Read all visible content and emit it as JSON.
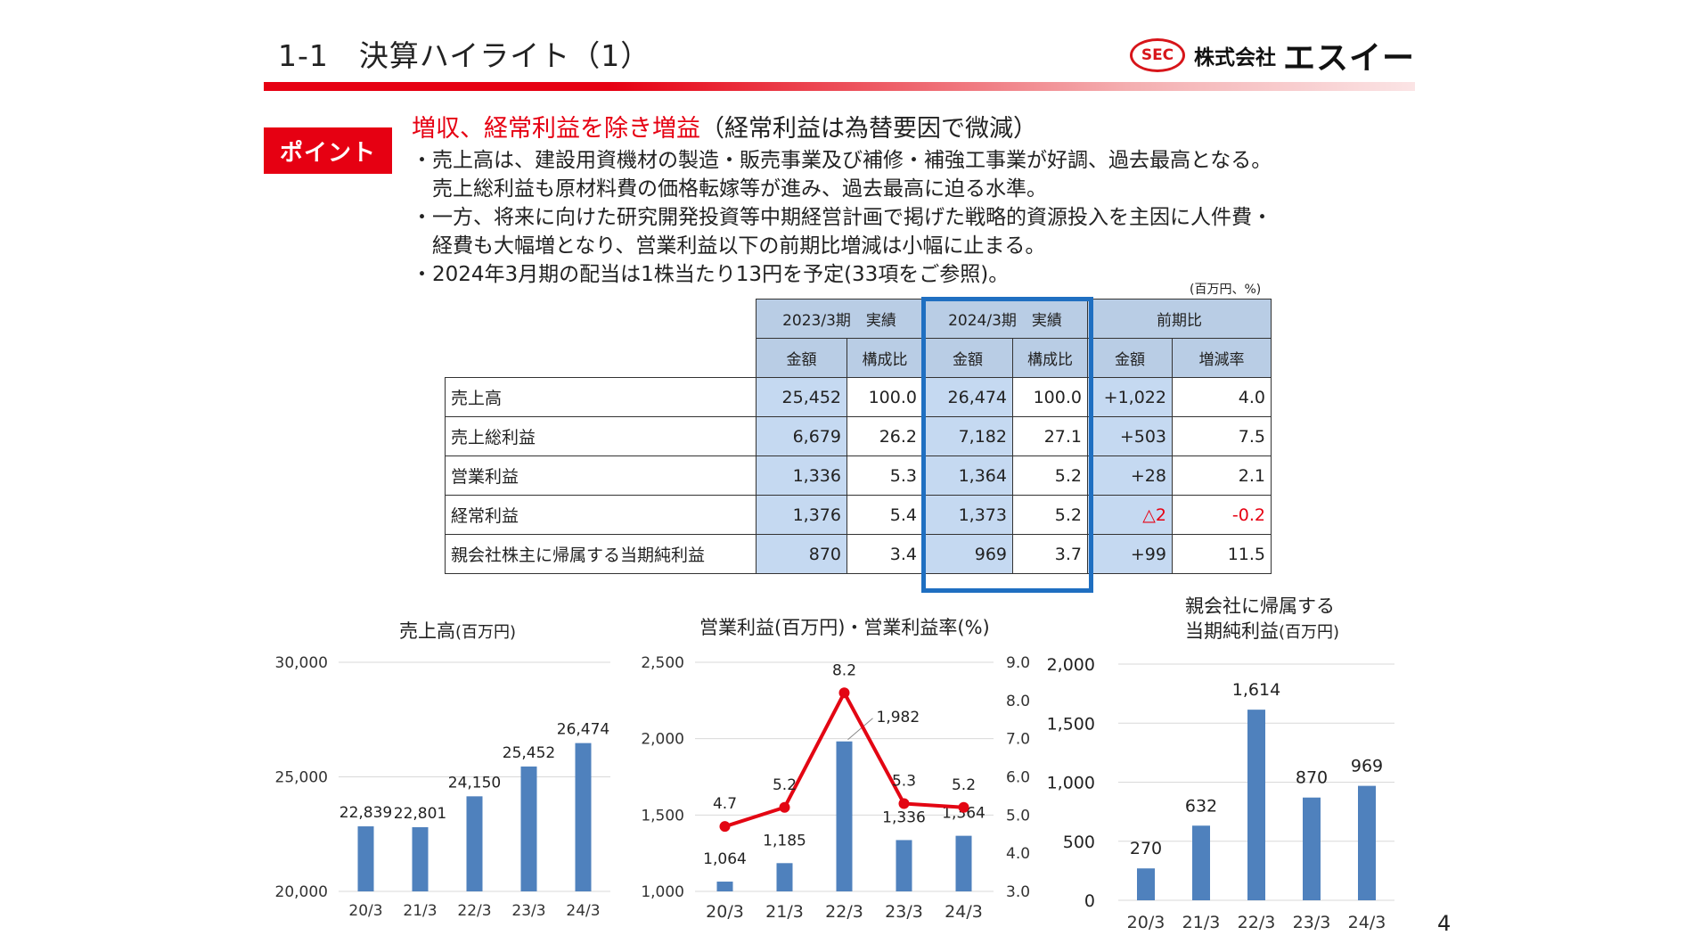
{
  "header": {
    "title": "1-1　決算ハイライト（1）",
    "logo_mark": "SEC",
    "logo_company": "株式会社",
    "logo_name": "エスイー"
  },
  "point": {
    "badge": "ポイント",
    "headline_red": "増収、経常利益を除き増益",
    "headline_rest": "（経常利益は為替要因で微減）",
    "bullets": [
      "・売上高は、建設用資機材の製造・販売事業及び補修・補強工事業が好調、過去最高となる。",
      "　売上総利益も原材料費の価格転嫁等が進み、過去最高に迫る水準。",
      "・一方、将来に向けた研究開発投資等中期経営計画で掲げた戦略的資源投入を主因に人件費・",
      "　経費も大幅増となり、営業利益以下の前期比増減は小幅に止まる。",
      "・2024年3月期の配当は1株当たり13円を予定(33項をご参照)。"
    ]
  },
  "table": {
    "unit": "(百万円、%)",
    "groups": [
      "2023/3期　実績",
      "2024/3期　実績",
      "前期比"
    ],
    "subheaders": [
      "金額",
      "構成比",
      "金額",
      "構成比",
      "金額",
      "増減率"
    ],
    "rows": [
      {
        "label": "売上高",
        "v": [
          "25,452",
          "100.0",
          "26,474",
          "100.0",
          "+1,022",
          "4.0"
        ]
      },
      {
        "label": "売上総利益",
        "v": [
          "6,679",
          "26.2",
          "7,182",
          "27.1",
          "+503",
          "7.5"
        ]
      },
      {
        "label": "営業利益",
        "v": [
          "1,336",
          "5.3",
          "1,364",
          "5.2",
          "+28",
          "2.1"
        ]
      },
      {
        "label": "経常利益",
        "v": [
          "1,376",
          "5.4",
          "1,373",
          "5.2",
          "△2",
          "-0.2"
        ]
      },
      {
        "label": "親会社株主に帰属する当期純利益",
        "v": [
          "870",
          "3.4",
          "969",
          "3.7",
          "+99",
          "11.5"
        ]
      }
    ]
  },
  "colors": {
    "bar": "#4f81bd",
    "line": "#e30613",
    "accent_red": "#e60012",
    "table_blue": "#c5d9f1",
    "highlight_blue": "#1f6fc1"
  },
  "chart_data": [
    {
      "type": "bar",
      "title": "売上高",
      "title_unit": "(百万円)",
      "categories": [
        "20/3",
        "21/3",
        "22/3",
        "23/3",
        "24/3"
      ],
      "values": [
        22839,
        22801,
        24150,
        25452,
        26474
      ],
      "labels": [
        "22,839",
        "22,801",
        "24,150",
        "25,452",
        "26,474"
      ],
      "ylim": [
        20000,
        30000
      ],
      "yticks": [
        "20,000",
        "25,000",
        "30,000"
      ],
      "grid": true
    },
    {
      "type": "bar",
      "title": "営業利益(百万円)・営業利益率(%)",
      "categories": [
        "20/3",
        "21/3",
        "22/3",
        "23/3",
        "24/3"
      ],
      "series": [
        {
          "name": "営業利益",
          "type": "bar",
          "values": [
            1064,
            1185,
            1982,
            1336,
            1364
          ],
          "labels": [
            "1,064",
            "1,185",
            "1,982",
            "1,336",
            "1,364"
          ]
        },
        {
          "name": "営業利益率",
          "type": "line",
          "axis": "right",
          "values": [
            4.7,
            5.2,
            8.2,
            5.3,
            5.2
          ],
          "labels": [
            "4.7",
            "5.2",
            "8.2",
            "5.3",
            "5.2"
          ]
        }
      ],
      "ylim": [
        1000,
        2500
      ],
      "yticks": [
        "1,000",
        "1,500",
        "2,000",
        "2,500"
      ],
      "y2lim": [
        3.0,
        9.0
      ],
      "y2ticks": [
        "3.0",
        "4.0",
        "5.0",
        "6.0",
        "7.0",
        "8.0",
        "9.0"
      ],
      "grid": true
    },
    {
      "type": "bar",
      "title_line1": "親会社に帰属する",
      "title_line2": "当期純利益",
      "title_unit": "(百万円)",
      "categories": [
        "20/3",
        "21/3",
        "22/3",
        "23/3",
        "24/3"
      ],
      "values": [
        270,
        632,
        1614,
        870,
        969
      ],
      "labels": [
        "270",
        "632",
        "1,614",
        "870",
        "969"
      ],
      "ylim": [
        0,
        2000
      ],
      "yticks": [
        "0",
        "500",
        "1,000",
        "1,500",
        "2,000"
      ],
      "grid": true
    }
  ],
  "page_number": "4"
}
